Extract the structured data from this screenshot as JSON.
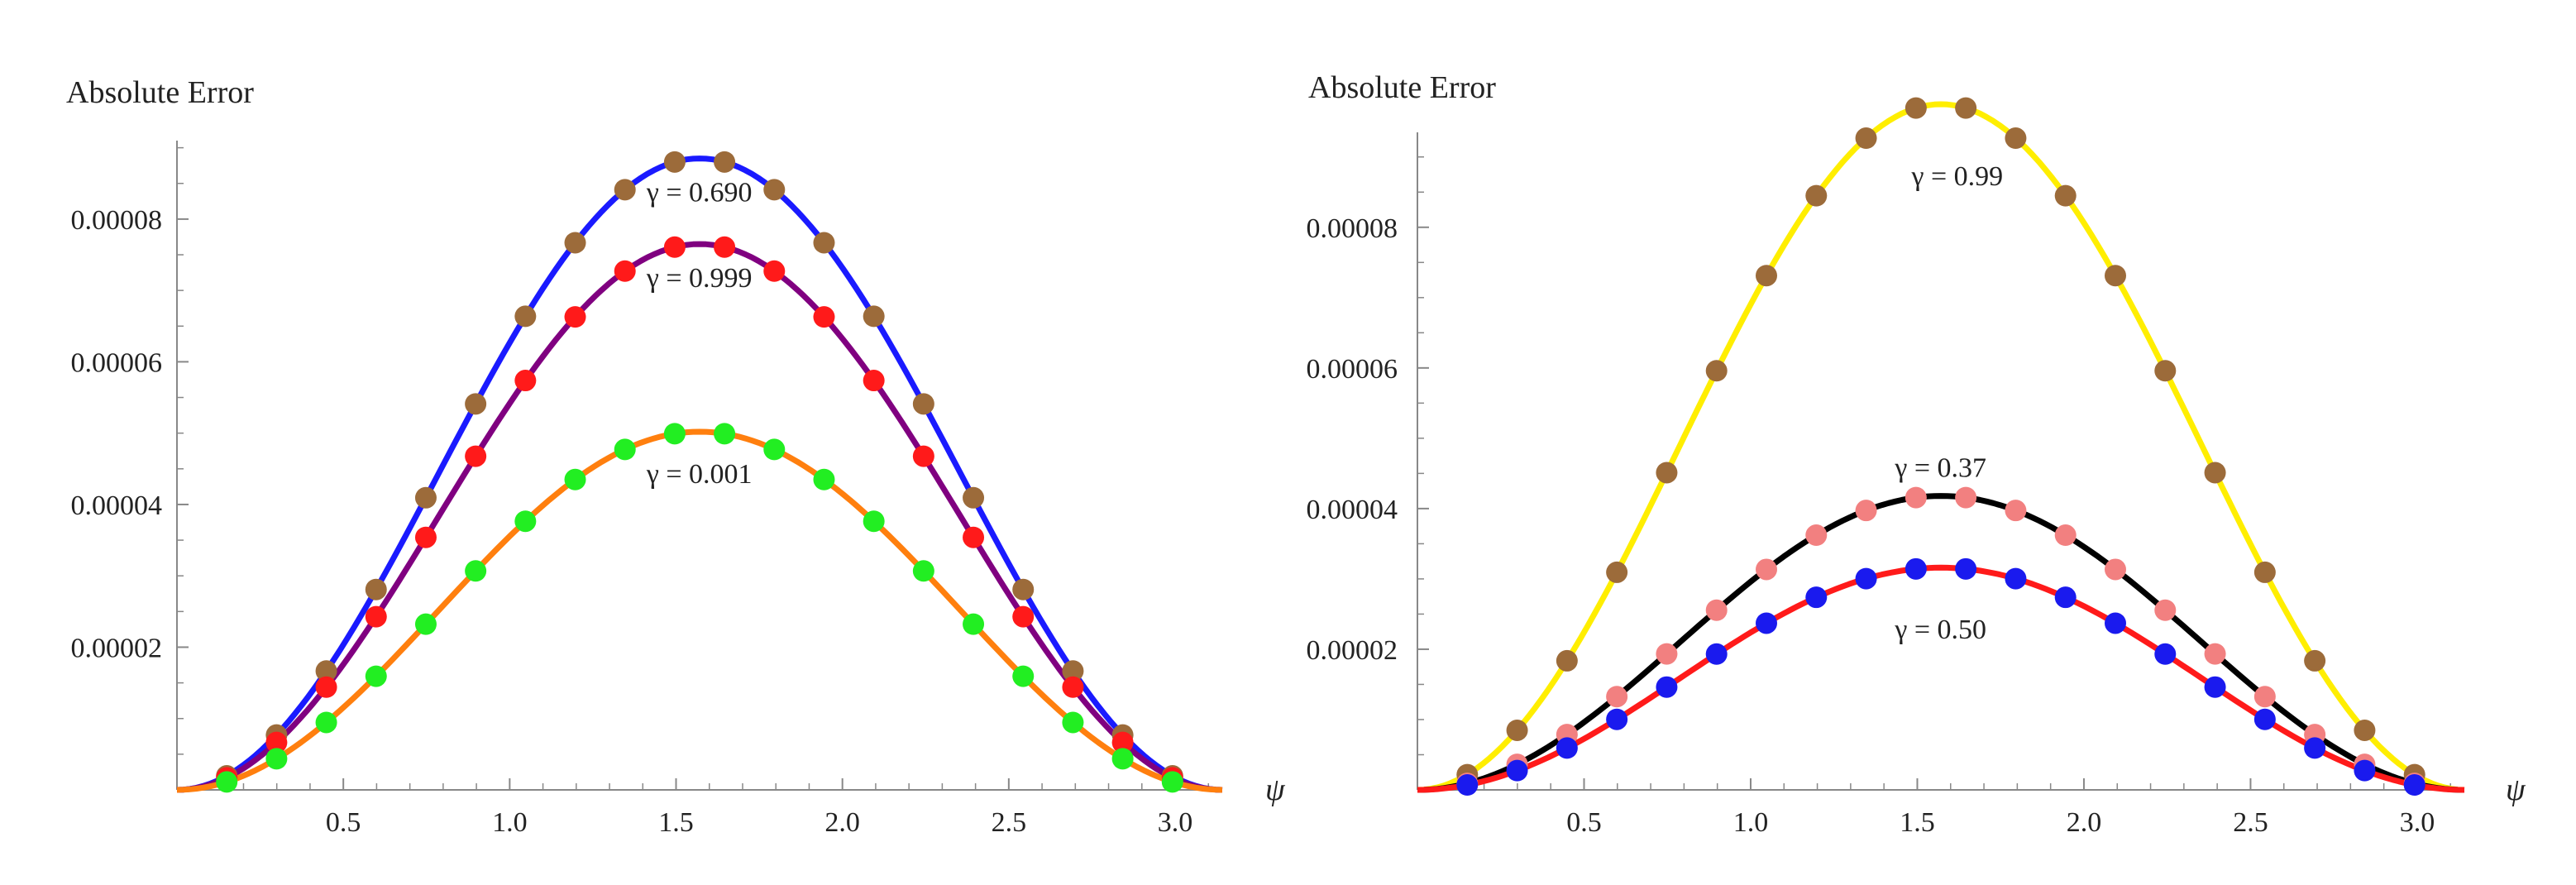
{
  "colors": {
    "blue": "#1a1aff",
    "purple": "#800080",
    "orange": "#ff7f0e",
    "brown": "#9c6b3a",
    "red": "#ff1a1a",
    "green": "#22ee22",
    "yellow": "#ffee00",
    "black": "#000000",
    "pink": "#f28080",
    "dotblue": "#1a1aee",
    "axis": "#888888"
  },
  "chart_data": [
    {
      "type": "line",
      "ylabel": "Absolute   Error",
      "xlabel": "ψ",
      "xlim": [
        0,
        3.1416
      ],
      "ylim": [
        0,
        9.1e-05
      ],
      "xticks": [
        {
          "v": 0.5,
          "label": "0.5"
        },
        {
          "v": 1.0,
          "label": "1.0"
        },
        {
          "v": 1.5,
          "label": "1.5"
        },
        {
          "v": 2.0,
          "label": "2.0"
        },
        {
          "v": 2.5,
          "label": "2.5"
        },
        {
          "v": 3.0,
          "label": "3.0"
        }
      ],
      "yticks": [
        {
          "v": 2e-05,
          "label": "0.00002"
        },
        {
          "v": 4e-05,
          "label": "0.00004"
        },
        {
          "v": 6e-05,
          "label": "0.00006"
        },
        {
          "v": 8e-05,
          "label": "0.00008"
        }
      ],
      "series": [
        {
          "name": "γ = 0.690",
          "amplitude": 8.85e-05,
          "line_color": "blue",
          "dot_color": "brown"
        },
        {
          "name": "γ = 0.999",
          "amplitude": 7.65e-05,
          "line_color": "purple",
          "dot_color": "red"
        },
        {
          "name": "γ = 0.001",
          "amplitude": 5.02e-05,
          "line_color": "orange",
          "dot_color": "green"
        }
      ],
      "annotations": [
        {
          "text": "γ = 0.690",
          "x": 1.57,
          "y": 8.25e-05
        },
        {
          "text": "γ = 0.999",
          "x": 1.57,
          "y": 7.05e-05
        },
        {
          "text": "γ = 0.001",
          "x": 1.57,
          "y": 4.3e-05
        }
      ],
      "annot_text": [
        "γ = 0.690",
        "γ = 0.999",
        "γ = 0.001"
      ]
    },
    {
      "type": "line",
      "ylabel": "Absolute   Error",
      "xlabel": "ψ",
      "xlim": [
        0,
        3.1416
      ],
      "ylim": [
        0,
        9.35e-05
      ],
      "xticks": [
        {
          "v": 0.5,
          "label": "0.5"
        },
        {
          "v": 1.0,
          "label": "1.0"
        },
        {
          "v": 1.5,
          "label": "1.5"
        },
        {
          "v": 2.0,
          "label": "2.0"
        },
        {
          "v": 2.5,
          "label": "2.5"
        },
        {
          "v": 3.0,
          "label": "3.0"
        }
      ],
      "yticks": [
        {
          "v": 2e-05,
          "label": "0.00002"
        },
        {
          "v": 4e-05,
          "label": "0.00004"
        },
        {
          "v": 6e-05,
          "label": "0.00006"
        },
        {
          "v": 8e-05,
          "label": "0.00008"
        }
      ],
      "series": [
        {
          "name": "γ = 0.99",
          "amplitude": 9.75e-05,
          "line_color": "yellow",
          "dot_color": "brown"
        },
        {
          "name": "γ = 0.37",
          "amplitude": 4.18e-05,
          "line_color": "black",
          "dot_color": "pink"
        },
        {
          "name": "γ = 0.50",
          "amplitude": 3.16e-05,
          "line_color": "red",
          "dot_color": "dotblue"
        }
      ],
      "annotations": [
        {
          "text": "γ = 0.99",
          "x": 1.62,
          "y": 8.6e-05
        },
        {
          "text": "γ = 0.37",
          "x": 1.57,
          "y": 4.45e-05
        },
        {
          "text": "γ = 0.50",
          "x": 1.57,
          "y": 2.15e-05
        }
      ],
      "annot_text": [
        "γ = 0.99",
        "γ = 0.37",
        "γ = 0.50"
      ]
    }
  ]
}
